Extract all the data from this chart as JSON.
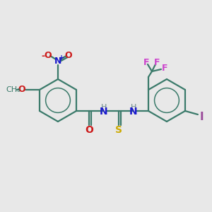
{
  "background_color": "#e8e8e8",
  "colors": {
    "bond": "#3a7a6a",
    "N": "#1a1acc",
    "O": "#cc1a1a",
    "S": "#ccaa00",
    "F": "#cc44cc",
    "I": "#9a4a9a",
    "H": "#6a8a8a"
  },
  "figsize": [
    3.0,
    3.0
  ],
  "dpi": 100
}
